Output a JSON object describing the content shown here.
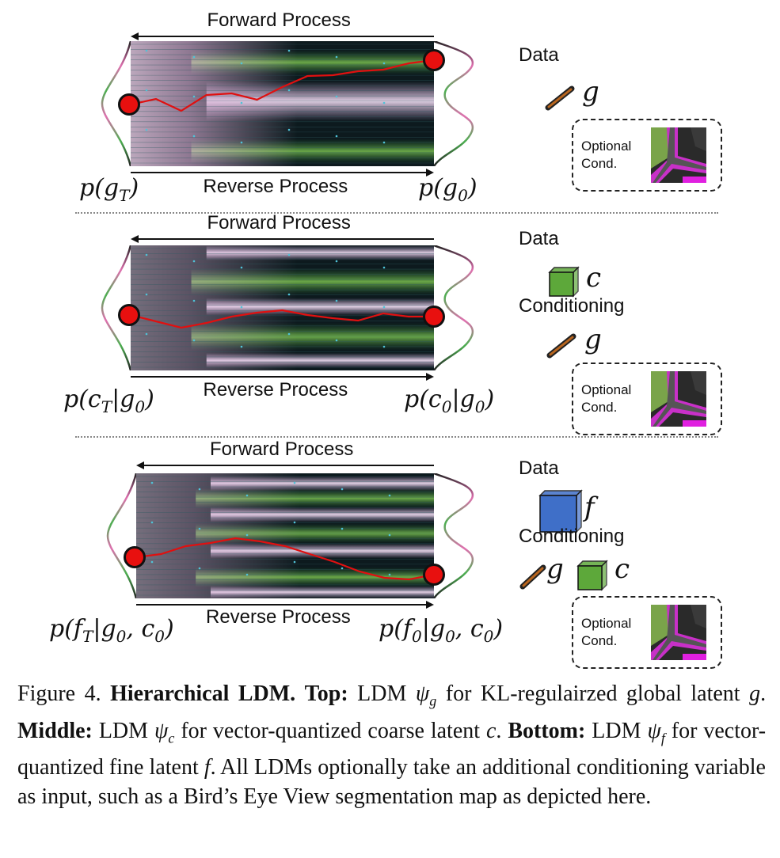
{
  "panels": [
    {
      "forward_label": "Forward Process",
      "reverse_label": "Reverse Process",
      "left_dist": "p(g_T)",
      "right_dist": "p(g_0)",
      "data_label": "Data",
      "data_var": "g",
      "conditioning_label": "",
      "cond_vars": [],
      "optional_label_1": "Optional",
      "optional_label_2": "Cond."
    },
    {
      "forward_label": "Forward Process",
      "reverse_label": "Reverse Process",
      "left_dist": "p(c_T|g_0)",
      "right_dist": "p(c_0|g_0)",
      "data_label": "Data",
      "data_var": "c",
      "conditioning_label": "Conditioning",
      "cond_vars": [
        "g"
      ],
      "optional_label_1": "Optional",
      "optional_label_2": "Cond."
    },
    {
      "forward_label": "Forward Process",
      "reverse_label": "Reverse Process",
      "left_dist": "p(f_T|g_0, c_0)",
      "right_dist": "p(f_0|g_0, c_0)",
      "data_label": "Data",
      "data_var": "f",
      "conditioning_label": "Conditioning",
      "cond_vars": [
        "g",
        "c"
      ],
      "optional_label_1": "Optional",
      "optional_label_2": "Cond."
    }
  ],
  "caption": {
    "fig": "Figure 4.",
    "title": "Hierarchical LDM.",
    "top_lbl": "Top:",
    "top_text_1": "LDM",
    "top_text_2": "for KL-regulairzed global latent",
    "mid_lbl": "Middle:",
    "mid_text_1": "LDM",
    "mid_text_2": "for vector-quantized coarse latent",
    "bot_lbl": "Bottom:",
    "bot_text_1": "LDM",
    "bot_text_2": "for vector-quantized fine latent",
    "tail": "All LDMs optionally take an additional conditioning variable as input, such as a Bird’s Eye View segmentation map as depicted here."
  },
  "colors": {
    "trajectory": "#e01010",
    "endpoint": "#e8100f",
    "cube_green": "#5da83a",
    "cube_blue": "#3f6fc8",
    "road_magenta": "#e020e0"
  }
}
